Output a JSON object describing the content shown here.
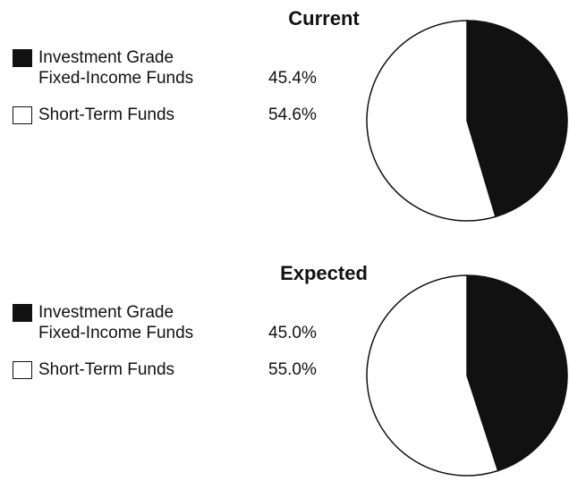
{
  "chart_data": [
    {
      "type": "pie",
      "title": "Current",
      "categories": [
        "Investment Grade Fixed-Income Funds",
        "Short-Term Funds"
      ],
      "values": [
        45.4,
        54.6
      ],
      "value_labels": [
        "45.4%",
        "54.6%"
      ],
      "colors": [
        "#111111",
        "#ffffff"
      ]
    },
    {
      "type": "pie",
      "title": "Expected",
      "categories": [
        "Investment Grade Fixed-Income Funds",
        "Short-Term Funds"
      ],
      "values": [
        45.0,
        55.0
      ],
      "value_labels": [
        "45.0%",
        "55.0%"
      ],
      "colors": [
        "#111111",
        "#ffffff"
      ]
    }
  ]
}
